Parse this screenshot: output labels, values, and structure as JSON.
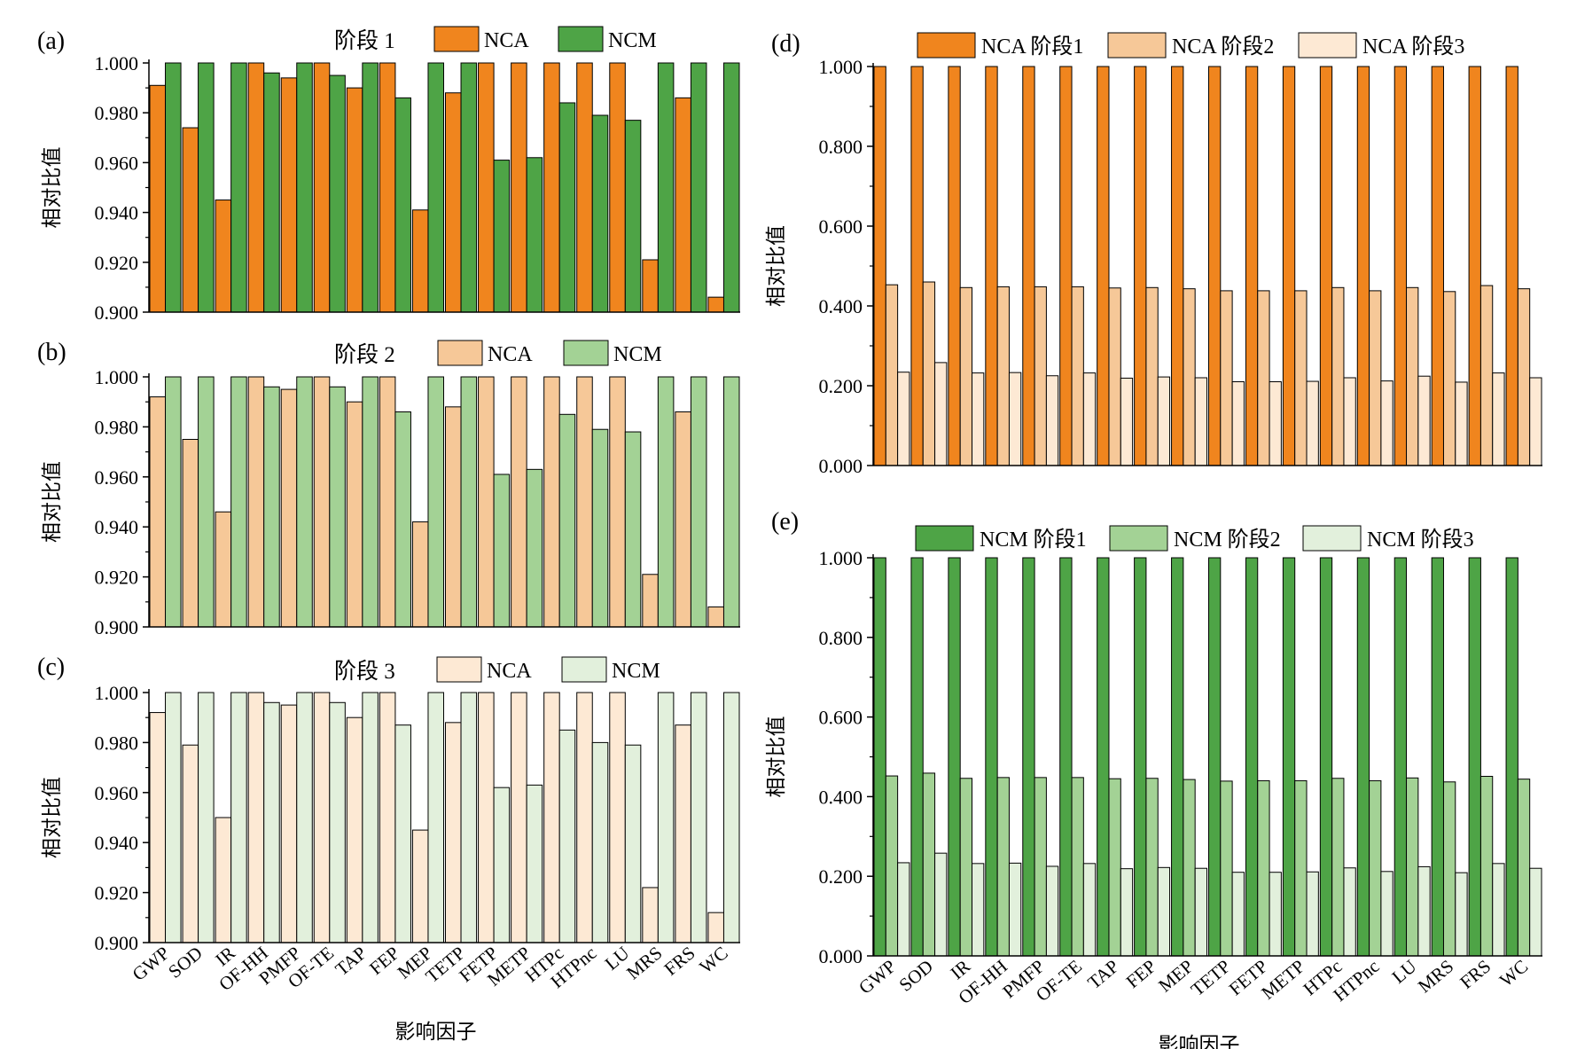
{
  "colors": {
    "nca1": "#f0851e",
    "nca2": "#f6c898",
    "nca3": "#fde9d4",
    "ncm1": "#4ea446",
    "ncm2": "#a3d295",
    "ncm3": "#e2f0dc"
  },
  "x_axis_title": "影响因子",
  "y_axis_title": "相对比值",
  "chart_data": [
    {
      "id": "a",
      "panel_label": "(a)",
      "type": "bar",
      "title": "阶段 1",
      "legend_placement": "top",
      "categories": [
        "GWP",
        "SOD",
        "IR",
        "OF-HH",
        "PMFP",
        "OF-TE",
        "TAP",
        "FEP",
        "MEP",
        "TETP",
        "FETP",
        "METP",
        "HTPc",
        "HTPnc",
        "LU",
        "MRS",
        "FRS",
        "WC"
      ],
      "ylim": [
        0.9,
        1.0
      ],
      "yticks": [
        "0.900",
        "0.920",
        "0.940",
        "0.960",
        "0.980",
        "1.000"
      ],
      "series": [
        {
          "name": "NCA",
          "color_key": "nca1",
          "values": [
            0.991,
            0.974,
            0.945,
            1.0,
            0.994,
            1.0,
            0.99,
            1.0,
            0.941,
            0.988,
            1.0,
            1.0,
            1.0,
            1.0,
            1.0,
            0.921,
            0.986,
            0.906
          ]
        },
        {
          "name": "NCM",
          "color_key": "ncm1",
          "values": [
            1.0,
            1.0,
            1.0,
            0.996,
            1.0,
            0.995,
            1.0,
            0.986,
            1.0,
            1.0,
            0.961,
            0.962,
            0.984,
            0.979,
            0.977,
            1.0,
            1.0,
            1.0
          ]
        }
      ]
    },
    {
      "id": "b",
      "panel_label": "(b)",
      "type": "bar",
      "title": "阶段 2",
      "legend_placement": "top",
      "categories": [
        "GWP",
        "SOD",
        "IR",
        "OF-HH",
        "PMFP",
        "OF-TE",
        "TAP",
        "FEP",
        "MEP",
        "TETP",
        "FETP",
        "METP",
        "HTPc",
        "HTPnc",
        "LU",
        "MRS",
        "FRS",
        "WC"
      ],
      "ylim": [
        0.9,
        1.0
      ],
      "yticks": [
        "0.900",
        "0.920",
        "0.940",
        "0.960",
        "0.980",
        "1.000"
      ],
      "series": [
        {
          "name": "NCA",
          "color_key": "nca2",
          "values": [
            0.992,
            0.975,
            0.946,
            1.0,
            0.995,
            1.0,
            0.99,
            1.0,
            0.942,
            0.988,
            1.0,
            1.0,
            1.0,
            1.0,
            1.0,
            0.921,
            0.986,
            0.908
          ]
        },
        {
          "name": "NCM",
          "color_key": "ncm2",
          "values": [
            1.0,
            1.0,
            1.0,
            0.996,
            1.0,
            0.996,
            1.0,
            0.986,
            1.0,
            1.0,
            0.961,
            0.963,
            0.985,
            0.979,
            0.978,
            1.0,
            1.0,
            1.0
          ]
        }
      ]
    },
    {
      "id": "c",
      "panel_label": "(c)",
      "type": "bar",
      "title": "阶段 3",
      "legend_placement": "top",
      "categories": [
        "GWP",
        "SOD",
        "IR",
        "OF-HH",
        "PMFP",
        "OF-TE",
        "TAP",
        "FEP",
        "MEP",
        "TETP",
        "FETP",
        "METP",
        "HTPc",
        "HTPnc",
        "LU",
        "MRS",
        "FRS",
        "WC"
      ],
      "ylim": [
        0.9,
        1.0
      ],
      "yticks": [
        "0.900",
        "0.920",
        "0.940",
        "0.960",
        "0.980",
        "1.000"
      ],
      "series": [
        {
          "name": "NCA",
          "color_key": "nca3",
          "values": [
            0.992,
            0.979,
            0.95,
            1.0,
            0.995,
            1.0,
            0.99,
            1.0,
            0.945,
            0.988,
            1.0,
            1.0,
            1.0,
            1.0,
            1.0,
            0.922,
            0.987,
            0.912
          ]
        },
        {
          "name": "NCM",
          "color_key": "ncm3",
          "values": [
            1.0,
            1.0,
            1.0,
            0.996,
            1.0,
            0.996,
            1.0,
            0.987,
            1.0,
            1.0,
            0.962,
            0.963,
            0.985,
            0.98,
            0.979,
            1.0,
            1.0,
            1.0
          ]
        }
      ]
    },
    {
      "id": "d",
      "panel_label": "(d)",
      "type": "bar",
      "title": "",
      "legend_placement": "top",
      "categories": [
        "GWP",
        "SOD",
        "IR",
        "OF-HH",
        "PMFP",
        "OF-TE",
        "TAP",
        "FEP",
        "MEP",
        "TETP",
        "FETP",
        "METP",
        "HTPc",
        "HTPnc",
        "LU",
        "MRS",
        "FRS",
        "WC"
      ],
      "ylim": [
        0.0,
        1.0
      ],
      "yticks": [
        "0.000",
        "0.200",
        "0.400",
        "0.600",
        "0.800",
        "1.000"
      ],
      "series": [
        {
          "name": "NCA 阶段1",
          "color_key": "nca1",
          "values": [
            1,
            1,
            1,
            1,
            1,
            1,
            1,
            1,
            1,
            1,
            1,
            1,
            1,
            1,
            1,
            1,
            1,
            1
          ]
        },
        {
          "name": "NCA 阶段2",
          "color_key": "nca2",
          "values": [
            0.453,
            0.46,
            0.446,
            0.448,
            0.448,
            0.448,
            0.445,
            0.446,
            0.443,
            0.438,
            0.438,
            0.438,
            0.446,
            0.438,
            0.446,
            0.436,
            0.451,
            0.443
          ]
        },
        {
          "name": "NCA 阶段3",
          "color_key": "nca3",
          "values": [
            0.234,
            0.258,
            0.232,
            0.233,
            0.225,
            0.232,
            0.219,
            0.222,
            0.22,
            0.21,
            0.21,
            0.211,
            0.22,
            0.212,
            0.224,
            0.209,
            0.232,
            0.22
          ]
        }
      ]
    },
    {
      "id": "e",
      "panel_label": "(e)",
      "type": "bar",
      "title": "",
      "legend_placement": "top",
      "categories": [
        "GWP",
        "SOD",
        "IR",
        "OF-HH",
        "PMFP",
        "OF-TE",
        "TAP",
        "FEP",
        "MEP",
        "TETP",
        "FETP",
        "METP",
        "HTPc",
        "HTPnc",
        "LU",
        "MRS",
        "FRS",
        "WC"
      ],
      "ylim": [
        0.0,
        1.0
      ],
      "yticks": [
        "0.000",
        "0.200",
        "0.400",
        "0.600",
        "0.800",
        "1.000"
      ],
      "series": [
        {
          "name": "NCM 阶段1",
          "color_key": "ncm1",
          "values": [
            1,
            1,
            1,
            1,
            1,
            1,
            1,
            1,
            1,
            1,
            1,
            1,
            1,
            1,
            1,
            1,
            1,
            1
          ]
        },
        {
          "name": "NCM 阶段2",
          "color_key": "ncm2",
          "values": [
            0.452,
            0.459,
            0.446,
            0.448,
            0.448,
            0.448,
            0.445,
            0.446,
            0.443,
            0.439,
            0.44,
            0.44,
            0.446,
            0.44,
            0.447,
            0.437,
            0.451,
            0.444
          ]
        },
        {
          "name": "NCM 阶段3",
          "color_key": "ncm3",
          "values": [
            0.234,
            0.258,
            0.232,
            0.233,
            0.225,
            0.232,
            0.219,
            0.222,
            0.22,
            0.21,
            0.21,
            0.211,
            0.221,
            0.212,
            0.224,
            0.209,
            0.232,
            0.22
          ]
        }
      ]
    }
  ]
}
